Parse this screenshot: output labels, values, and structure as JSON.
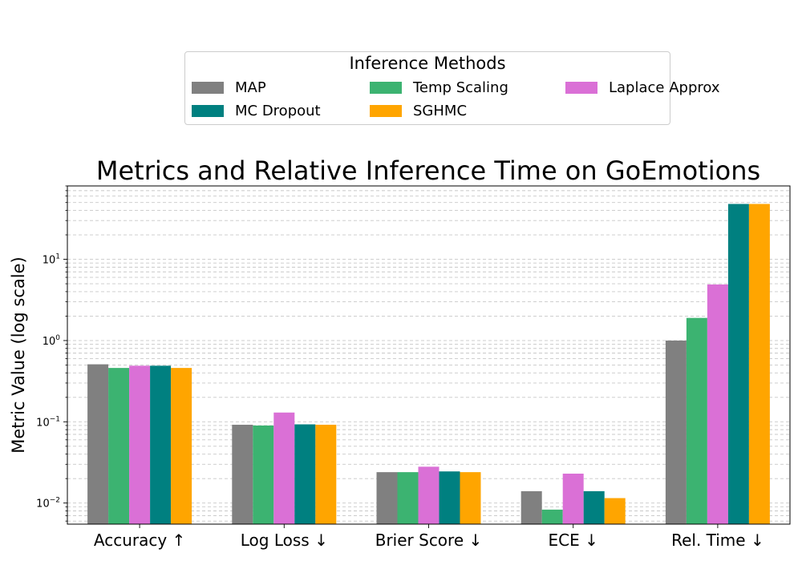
{
  "chart_data": {
    "type": "bar",
    "title": "Metrics and Relative Inference Time on GoEmotions",
    "ylabel": "Metric Value (log scale)",
    "xlabel": "",
    "yscale": "log",
    "ylim": [
      0.0055,
      80
    ],
    "yticks": [
      {
        "value": 0.01,
        "label": "10",
        "exp": "−2"
      },
      {
        "value": 0.1,
        "label": "10",
        "exp": "−1"
      },
      {
        "value": 1,
        "label": "10",
        "exp": "0"
      },
      {
        "value": 10,
        "label": "10",
        "exp": "1"
      }
    ],
    "grid": true,
    "legend_placement": "top-center",
    "categories": [
      "Accuracy ↑",
      "Log Loss ↓",
      "Brier Score ↓",
      "ECE ↓",
      "Rel. Time ↓"
    ],
    "series": [
      {
        "name": "MAP",
        "color": "#808080",
        "values": [
          0.51,
          0.092,
          0.024,
          0.014,
          1.0
        ]
      },
      {
        "name": "Temp Scaling",
        "color": "#3cb371",
        "values": [
          0.46,
          0.09,
          0.024,
          0.0083,
          1.9
        ]
      },
      {
        "name": "Laplace Approx",
        "color": "#da70d6",
        "values": [
          0.49,
          0.13,
          0.028,
          0.023,
          4.9
        ]
      },
      {
        "name": "MC Dropout",
        "color": "#008080",
        "values": [
          0.49,
          0.093,
          0.0245,
          0.014,
          48
        ]
      },
      {
        "name": "SGHMC",
        "color": "#ffa500",
        "values": [
          0.46,
          0.092,
          0.024,
          0.0115,
          48
        ]
      }
    ]
  },
  "legend": {
    "title": "Inference Methods"
  }
}
